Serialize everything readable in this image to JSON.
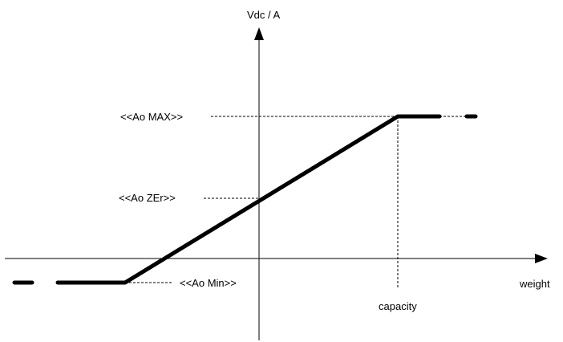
{
  "diagram": {
    "y_axis_label": "Vdc / A",
    "x_axis_label": "weight",
    "ao_max_label": "<<Ao MAX>>",
    "ao_zero_label": "<<Ao ZEr>>",
    "ao_min_label": "<<Ao Min>>",
    "capacity_label": "capacity",
    "line_color": "#000000"
  }
}
